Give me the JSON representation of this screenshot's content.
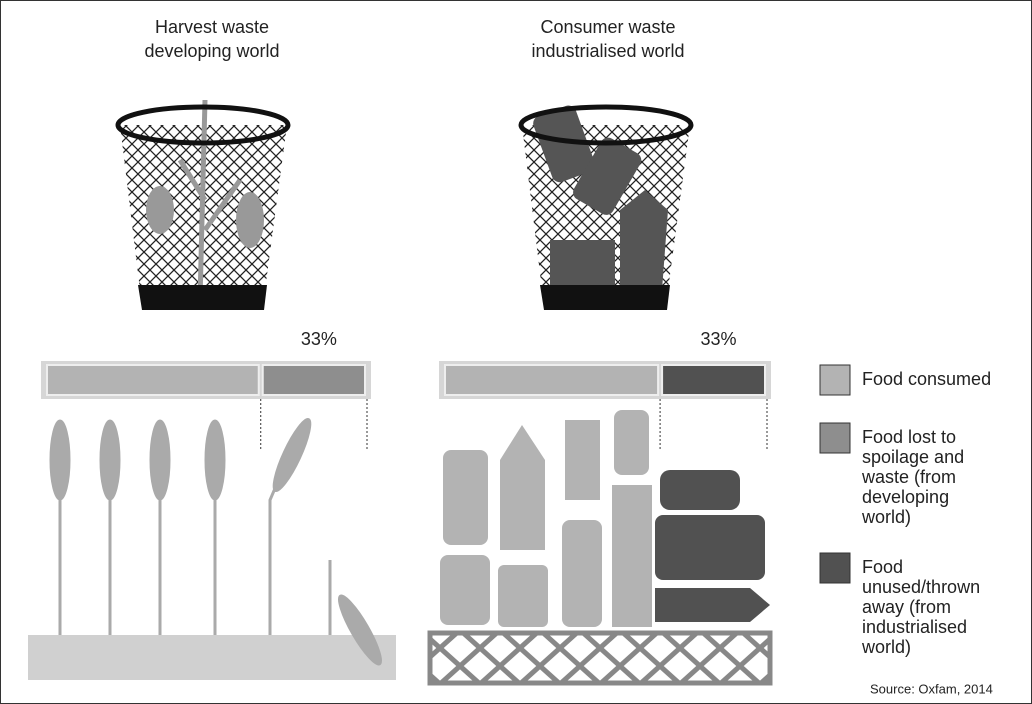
{
  "chart_data": [
    {
      "type": "stacked-bar",
      "title": [
        "Harvest waste",
        "developing world"
      ],
      "xlim": [
        0,
        100
      ],
      "series": [
        {
          "color": "#b3b3b3",
          "values": [
            67
          ]
        },
        {
          "color": "#8e8e8e",
          "values": [
            33
          ],
          "value_labels": [
            "33%"
          ]
        }
      ]
    },
    {
      "type": "stacked-bar",
      "title": [
        "Consumer waste",
        "industrialised world"
      ],
      "xlim": [
        0,
        100
      ],
      "series": [
        {
          "color": "#b3b3b3",
          "values": [
            67
          ]
        },
        {
          "color": "#515151",
          "values": [
            33
          ],
          "value_labels": [
            "33%"
          ]
        }
      ]
    }
  ],
  "legend": [
    {
      "lines": [
        "Food consumed"
      ],
      "color": "#b3b3b3"
    },
    {
      "lines": [
        "Food lost to",
        "spoilage and",
        "waste (from",
        "developing",
        "world)"
      ],
      "color": "#8e8e8e"
    },
    {
      "lines": [
        "Food",
        "unused/thrown",
        "away (from",
        "industrialised",
        "world)"
      ],
      "color": "#515151"
    }
  ],
  "source": "Source: Oxfam, 2014"
}
